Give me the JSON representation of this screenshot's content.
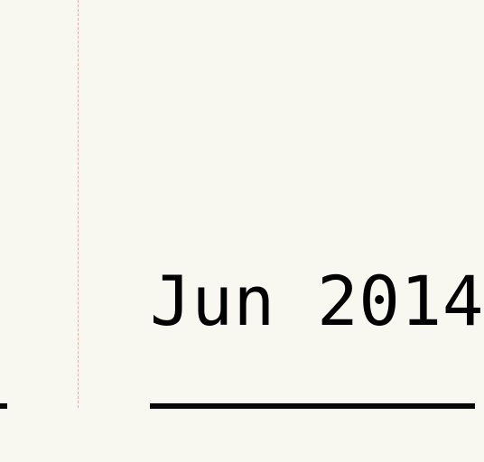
{
  "timeline": {
    "date_label": "Jun 2014"
  },
  "colors": {
    "background": "#f8f7f0",
    "rule": "#080808",
    "guide": "#f0b4ac",
    "text": "#000000"
  }
}
